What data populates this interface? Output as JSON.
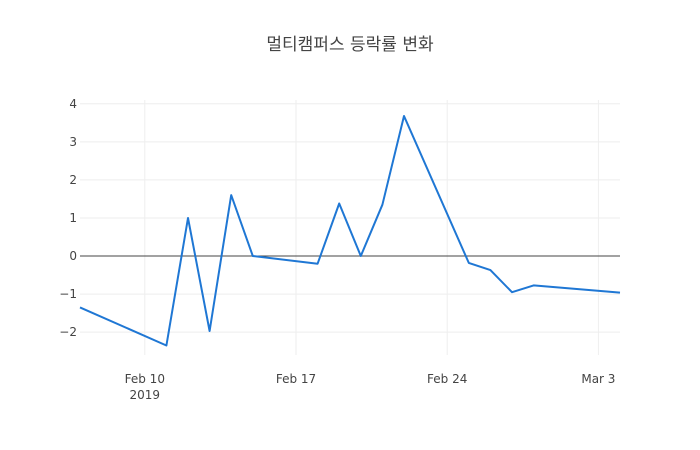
{
  "chart_data": {
    "type": "line",
    "title": "멀티캠퍼스 등락률 변화",
    "xlabel": "",
    "ylabel": "",
    "x_range": [
      "2019-02-07",
      "2019-03-04"
    ],
    "ylim": [
      -2.6,
      4.1
    ],
    "grid": true,
    "legend": "none",
    "zero_line": true,
    "line_color": "#1f77d4",
    "x_ticks": [
      {
        "date": "2019-02-10",
        "label": "Feb 10",
        "sublabel": "2019"
      },
      {
        "date": "2019-02-17",
        "label": "Feb 17",
        "sublabel": ""
      },
      {
        "date": "2019-02-24",
        "label": "Feb 24",
        "sublabel": ""
      },
      {
        "date": "2019-03-03",
        "label": "Mar 3",
        "sublabel": ""
      }
    ],
    "y_ticks": [
      {
        "value": 4,
        "label": "4"
      },
      {
        "value": 3,
        "label": "3"
      },
      {
        "value": 2,
        "label": "2"
      },
      {
        "value": 1,
        "label": "1"
      },
      {
        "value": 0,
        "label": "0"
      },
      {
        "value": -1,
        "label": "−1"
      },
      {
        "value": -2,
        "label": "−2"
      }
    ],
    "series": [
      {
        "x": [
          "2019-02-07",
          "2019-02-11",
          "2019-02-12",
          "2019-02-13",
          "2019-02-14",
          "2019-02-15",
          "2019-02-18",
          "2019-02-19",
          "2019-02-20",
          "2019-02-21",
          "2019-02-22",
          "2019-02-25",
          "2019-02-26",
          "2019-02-27",
          "2019-02-28",
          "2019-03-04"
        ],
        "values": [
          -1.35,
          -2.35,
          1.0,
          -1.97,
          1.6,
          0.0,
          -0.2,
          1.38,
          0.0,
          1.35,
          3.68,
          -0.18,
          -0.37,
          -0.95,
          -0.77,
          -0.96
        ]
      }
    ]
  }
}
